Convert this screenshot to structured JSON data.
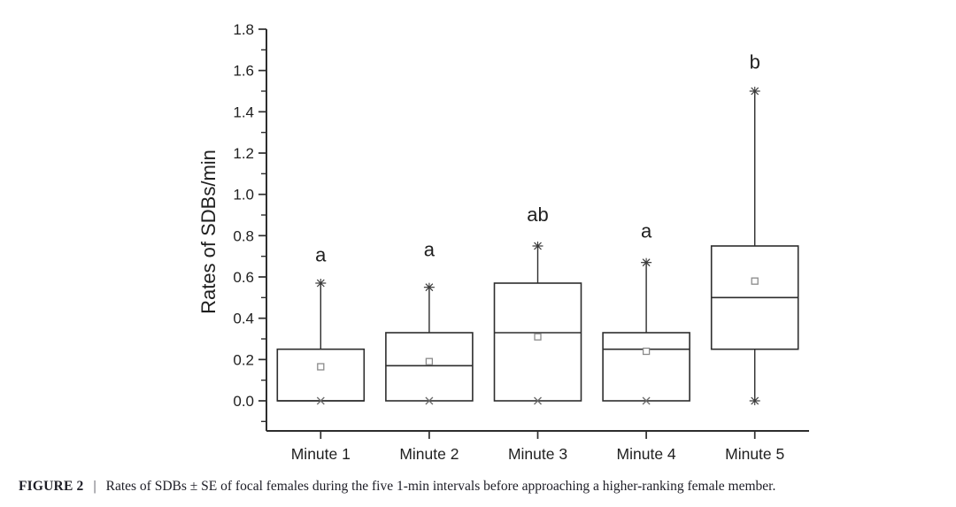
{
  "figure": {
    "caption_label": "FIGURE 2",
    "caption_separator": "|",
    "caption_text": "Rates of SDBs ± SE of focal females during the five 1-min intervals before approaching a higher-ranking female member."
  },
  "chart_data": {
    "type": "box",
    "title": "",
    "xlabel": "",
    "ylabel": "Rates of SDBs/min",
    "ylim": [
      0,
      1.8
    ],
    "y_major_tick": 0.2,
    "y_minor_tick": 0.1,
    "y_tick_labels": [
      "0.0",
      "0.2",
      "0.4",
      "0.6",
      "0.8",
      "1.0",
      "1.2",
      "1.4",
      "1.6",
      "1.8"
    ],
    "grid": false,
    "legend": "none",
    "categories": [
      "Minute 1",
      "Minute 2",
      "Minute 3",
      "Minute 4",
      "Minute 5"
    ],
    "boxes": [
      {
        "category": "Minute 1",
        "q1": 0.0,
        "median": 0.0,
        "q3": 0.25,
        "whisker_low": 0.0,
        "whisker_high": 0.57,
        "mean": 0.165,
        "min_marker": "x",
        "max_marker": "star",
        "sig_letter": "a",
        "letter_y": 0.675
      },
      {
        "category": "Minute 2",
        "q1": 0.0,
        "median": 0.17,
        "q3": 0.33,
        "whisker_low": 0.0,
        "whisker_high": 0.55,
        "mean": 0.19,
        "min_marker": "x",
        "max_marker": "star",
        "sig_letter": "a",
        "letter_y": 0.7
      },
      {
        "category": "Minute 3",
        "q1": 0.0,
        "median": 0.33,
        "q3": 0.57,
        "whisker_low": 0.0,
        "whisker_high": 0.75,
        "mean": 0.31,
        "min_marker": "x",
        "max_marker": "star",
        "sig_letter": "ab",
        "letter_y": 0.87
      },
      {
        "category": "Minute 4",
        "q1": 0.0,
        "median": 0.25,
        "q3": 0.33,
        "whisker_low": 0.0,
        "whisker_high": 0.67,
        "mean": 0.24,
        "min_marker": "x",
        "max_marker": "star",
        "sig_letter": "a",
        "letter_y": 0.79
      },
      {
        "category": "Minute 5",
        "q1": 0.25,
        "median": 0.5,
        "q3": 0.75,
        "whisker_low": 0.0,
        "whisker_high": 1.5,
        "mean": 0.58,
        "min_marker": "star",
        "max_marker": "star",
        "sig_letter": "b",
        "letter_y": 1.61
      }
    ],
    "colors": {
      "axis_line": "#2d2d2d",
      "box_line": "#2d2d2d",
      "star_marker": "#3a3a3a",
      "x_marker": "#6a6a6a",
      "mean_marker": "#8a8a8a",
      "tick_text": "#1f1f1f",
      "background": "#ffffff",
      "caption_text": "#1d1d26"
    }
  }
}
